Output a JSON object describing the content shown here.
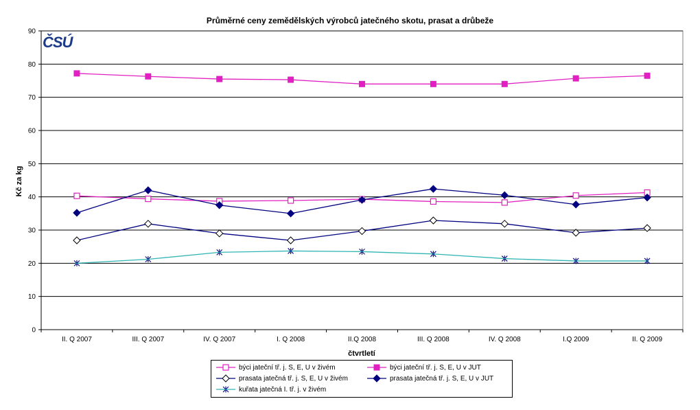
{
  "chart_data": {
    "type": "line",
    "title": "Průměrné ceny zemědělských výrobců jatečného skotu, prasat a drůbeže",
    "xlabel": "čtvrtletí",
    "ylabel": "Kč za kg",
    "ylim": [
      0,
      90
    ],
    "ytick_step": 10,
    "grid": true,
    "legend_position": "bottom",
    "logo_text": "ČSÚ",
    "categories": [
      "II. Q 2007",
      "III. Q 2007",
      "IV. Q 2007",
      "I. Q 2008",
      "II.Q 2008",
      "III. Q 2008",
      "IV. Q 2008",
      "I.Q 2009",
      "II. Q 2009"
    ],
    "series": [
      {
        "name": "býci jateční tř. j. S, E, U  v živém",
        "color": "#e020c0",
        "marker": "square-open",
        "values": [
          40.3,
          39.4,
          38.7,
          38.9,
          39.3,
          38.6,
          38.3,
          40.4,
          41.3
        ]
      },
      {
        "name": "býci jateční tř. j. S, E, U v JUT",
        "color": "#e020c0",
        "marker": "square-filled",
        "values": [
          77.2,
          76.3,
          75.5,
          75.3,
          74.0,
          74.0,
          74.0,
          75.7,
          76.5
        ]
      },
      {
        "name": "prasata jatečná tř. j. S, E, U v živém",
        "color": "#000080",
        "marker": "diamond-open",
        "values": [
          26.9,
          31.9,
          29.0,
          26.9,
          29.7,
          32.9,
          31.9,
          29.2,
          30.6
        ]
      },
      {
        "name": "prasata jatečná tř. j. S, E, U v JUT",
        "color": "#000080",
        "marker": "diamond-filled",
        "values": [
          35.2,
          42.0,
          37.5,
          35.0,
          39.1,
          42.4,
          40.5,
          37.7,
          39.8
        ]
      },
      {
        "name": "kuřata jatečná I. tř. j. v živém",
        "color": "#33b5b5",
        "marker": "star",
        "values": [
          20.0,
          21.2,
          23.3,
          23.7,
          23.5,
          22.8,
          21.4,
          20.7,
          20.7
        ]
      }
    ]
  }
}
